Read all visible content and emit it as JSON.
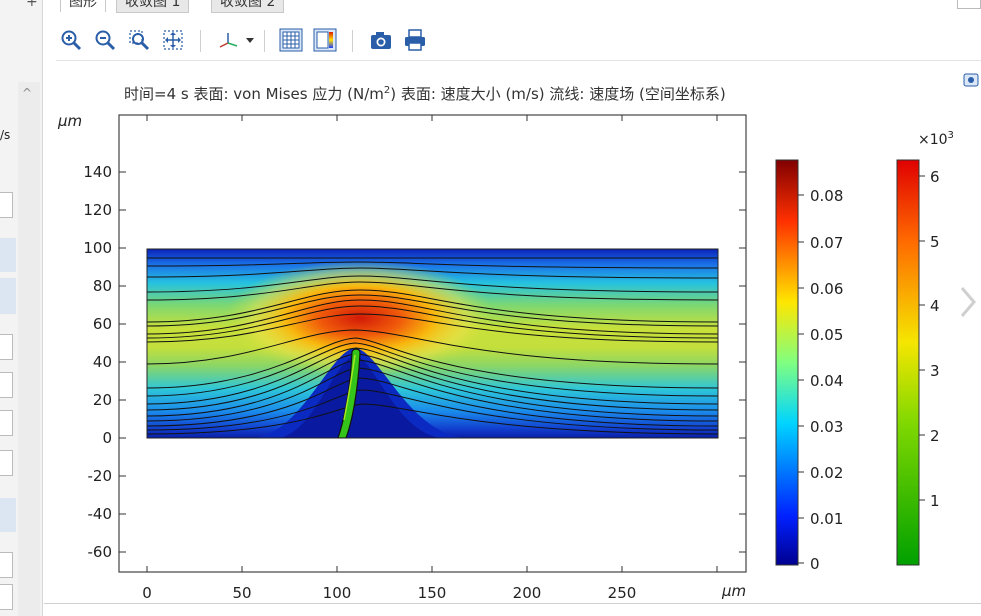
{
  "tabs": [
    "图形",
    "收敛图 1",
    "收敛图 2"
  ],
  "left_panel": {
    "clipped_label": "/s"
  },
  "toolbar": {
    "icons": [
      "zoom-in-icon",
      "zoom-out-icon",
      "zoom-box-icon",
      "zoom-extents-icon",
      "axis-orientation-icon",
      "grid-view-icon",
      "color-table-icon",
      "camera-icon",
      "print-icon"
    ]
  },
  "plot": {
    "title_line": "时间=4 s   表面: von Mises 应力 (N/m",
    "title_sup": "2",
    "title_rest": ")  表面: 速度大小 (m/s)  流线: 速度场   (空间坐标系)",
    "unit_y": "µm",
    "unit_x": "µm",
    "x_ticks": [
      "0",
      "50",
      "100",
      "150",
      "200",
      "250"
    ],
    "y_ticks": [
      "140",
      "120",
      "100",
      "80",
      "60",
      "40",
      "20",
      "0",
      "-20",
      "-40",
      "-60"
    ]
  },
  "colorbar_velocity": {
    "ticks": [
      "0.08",
      "0.07",
      "0.06",
      "0.05",
      "0.04",
      "0.03",
      "0.02",
      "0.01",
      "0"
    ]
  },
  "colorbar_stress": {
    "multiplier": "×10",
    "multiplier_exp": "3",
    "ticks": [
      "6",
      "5",
      "4",
      "3",
      "2",
      "1"
    ]
  },
  "colors": {
    "accent": "#1f5fbf",
    "toolbar_icon": "#2a5ea8"
  }
}
